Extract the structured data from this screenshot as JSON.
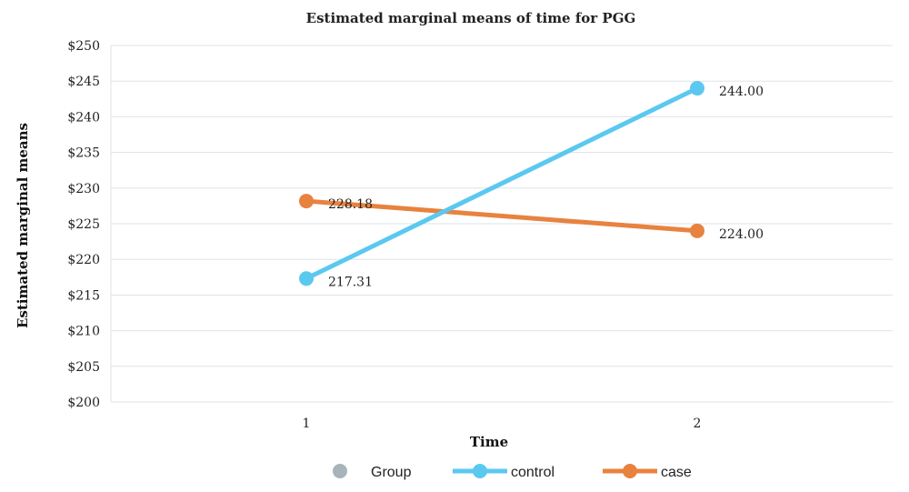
{
  "chart_data": {
    "type": "line",
    "title": "Estimated marginal means of time for PGG",
    "xlabel": "Time",
    "ylabel": "Estimated marginal means",
    "categories": [
      "1",
      "2"
    ],
    "ylim": [
      200,
      250
    ],
    "yticks": [
      "$200",
      "$205",
      "$210",
      "$215",
      "$220",
      "$225",
      "$230",
      "$235",
      "$240",
      "$245",
      "$250"
    ],
    "legend_title": "Group",
    "series": [
      {
        "name": "control",
        "values": [
          217.31,
          244.0
        ],
        "labels": [
          "217.31",
          "244.00"
        ],
        "color": "#5bc8f0"
      },
      {
        "name": "case",
        "values": [
          228.18,
          224.0
        ],
        "labels": [
          "228.18",
          "224.00"
        ],
        "color": "#e8823f"
      }
    ],
    "legend_marker_color": "#a9b3ba",
    "grid": true,
    "legend_position": "bottom"
  }
}
